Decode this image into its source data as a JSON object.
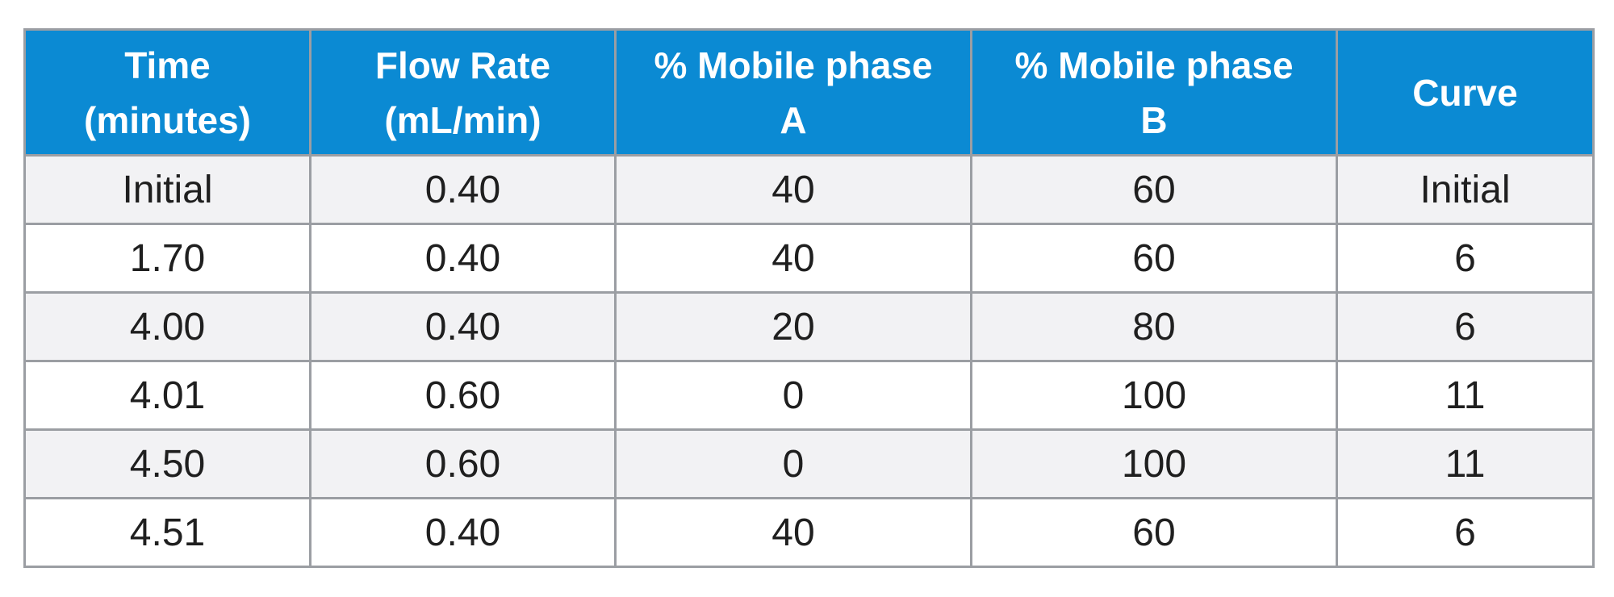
{
  "table": {
    "headers": [
      {
        "line1": "Time",
        "line2": "(minutes)"
      },
      {
        "line1": "Flow Rate",
        "line2": "(mL/min)"
      },
      {
        "line1": "% Mobile phase",
        "line2": "A"
      },
      {
        "line1": "% Mobile phase",
        "line2": "B"
      },
      {
        "line1": "Curve",
        "line2": ""
      }
    ],
    "rows": [
      [
        "Initial",
        "0.40",
        "40",
        "60",
        "Initial"
      ],
      [
        "1.70",
        "0.40",
        "40",
        "60",
        "6"
      ],
      [
        "4.00",
        "0.40",
        "20",
        "80",
        "6"
      ],
      [
        "4.01",
        "0.60",
        "0",
        "100",
        "11"
      ],
      [
        "4.50",
        "0.60",
        "0",
        "100",
        "11"
      ],
      [
        "4.51",
        "0.40",
        "40",
        "60",
        "6"
      ]
    ]
  },
  "colors": {
    "header_bg": "#0b8ad3",
    "header_text": "#ffffff",
    "stripe_bg": "#f2f2f4",
    "border": "#9b9ea3"
  }
}
